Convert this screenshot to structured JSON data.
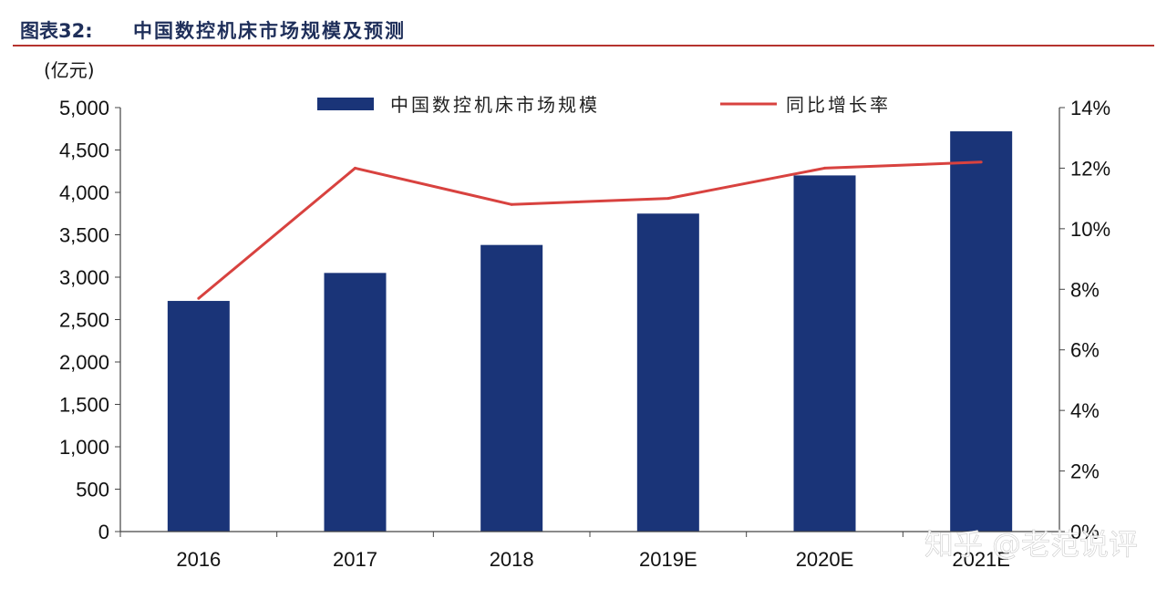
{
  "header": {
    "figure_label": "图表32:",
    "title": "中国数控机床市场规模及预测"
  },
  "watermark": "知乎 @老范说评",
  "colors": {
    "bar": "#1a3478",
    "line": "#d8423f",
    "rule": "#b5332e"
  },
  "chart_data": {
    "type": "bar",
    "categories": [
      "2016",
      "2017",
      "2018",
      "2019E",
      "2020E",
      "2021E"
    ],
    "series": [
      {
        "name": "中国数控机床市场规模",
        "type": "bar",
        "axis": "left",
        "values": [
          2720,
          3050,
          3380,
          3750,
          4200,
          4720
        ]
      },
      {
        "name": "同比增长率",
        "type": "line",
        "axis": "right",
        "values": [
          7.7,
          12.0,
          10.8,
          11.0,
          12.0,
          12.2
        ]
      }
    ],
    "y_left": {
      "label": "(亿元)",
      "ylim": [
        0,
        5000
      ],
      "ticks": [
        0,
        500,
        1000,
        1500,
        2000,
        2500,
        3000,
        3500,
        4000,
        4500,
        5000
      ],
      "tick_labels": [
        "0",
        "500",
        "1,000",
        "1,500",
        "2,000",
        "2,500",
        "3,000",
        "3,500",
        "4,000",
        "4,500",
        "5,000"
      ]
    },
    "y_right": {
      "ylim": [
        0,
        14
      ],
      "ticks": [
        0,
        2,
        4,
        6,
        8,
        10,
        12,
        14
      ],
      "tick_labels": [
        "0%",
        "2%",
        "4%",
        "6%",
        "8%",
        "10%",
        "12%",
        "14%"
      ]
    },
    "legend_position": "top-center",
    "grid": false
  }
}
